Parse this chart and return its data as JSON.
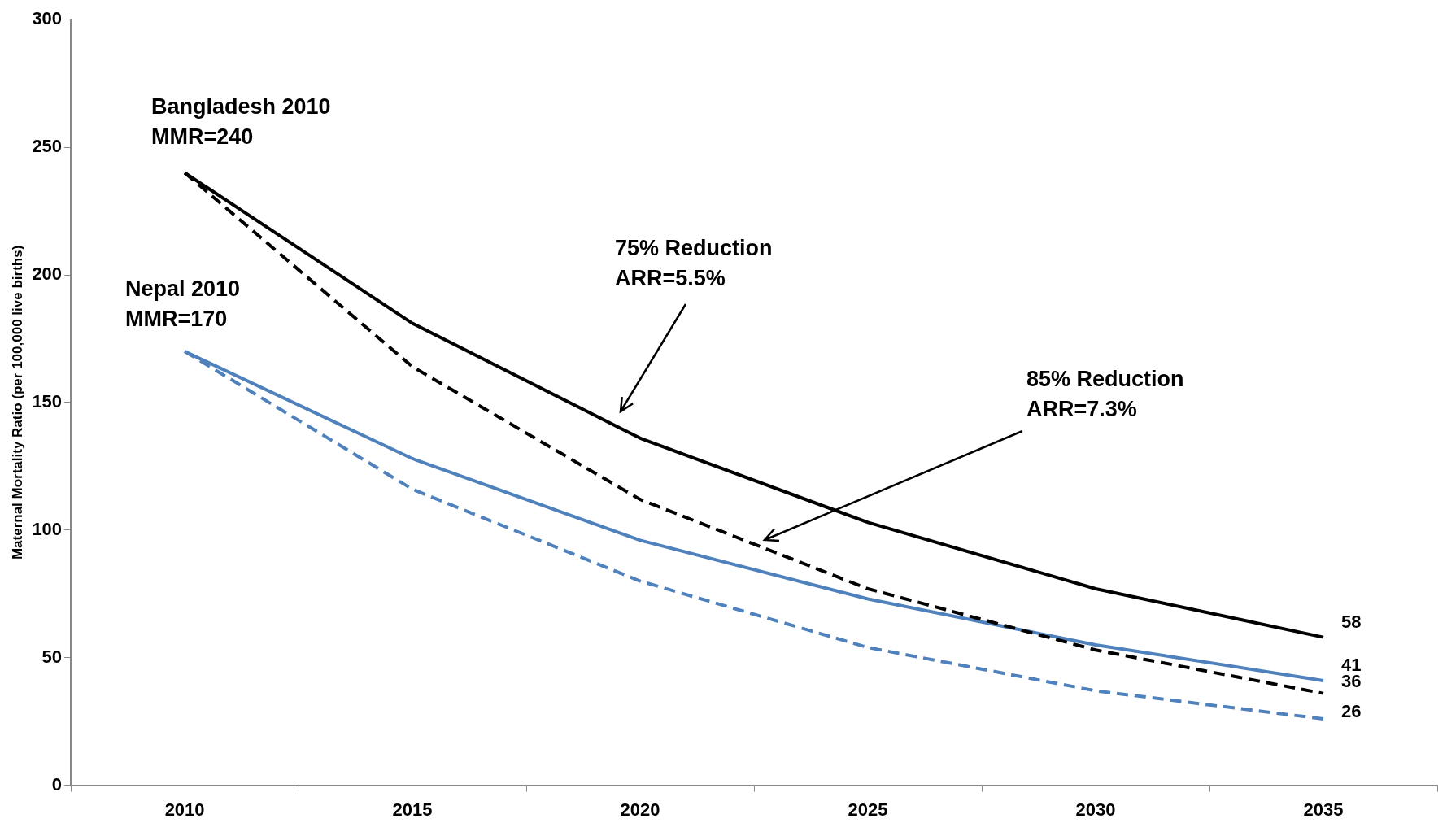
{
  "chart_data": {
    "type": "line",
    "ylabel": "Maternal Mortality Ratio (per 100,000 live births)",
    "categories": [
      "2010",
      "2015",
      "2020",
      "2025",
      "2030",
      "2035"
    ],
    "ylim": [
      0,
      300
    ],
    "yticks": [
      0,
      50,
      100,
      150,
      200,
      250,
      300
    ],
    "grid": false,
    "legend": false,
    "marker": "none",
    "series": [
      {
        "color": "#000000",
        "line_style": "solid",
        "values": [
          240,
          181,
          136,
          103,
          77,
          58
        ],
        "value_labels": [
          null,
          null,
          null,
          null,
          null,
          "58"
        ]
      },
      {
        "color": "#000000",
        "line_style": "dashed",
        "values": [
          240,
          164,
          112,
          77,
          53,
          36
        ],
        "value_labels": [
          null,
          null,
          null,
          null,
          null,
          "36"
        ]
      },
      {
        "color": "#4f81bd",
        "line_style": "solid",
        "values": [
          170,
          128,
          96,
          73,
          55,
          41
        ],
        "value_labels": [
          null,
          null,
          null,
          null,
          null,
          "41"
        ]
      },
      {
        "color": "#4f81bd",
        "line_style": "dashed",
        "values": [
          170,
          116,
          80,
          54,
          37,
          26
        ],
        "value_labels": [
          null,
          null,
          null,
          null,
          null,
          "26"
        ]
      }
    ],
    "annotations": [
      "Bangladesh 2010\nMMR=240",
      "Nepal 2010\nMMR=170",
      "75% Reduction\nARR=5.5%",
      "85% Reduction\nARR=7.3%"
    ]
  }
}
